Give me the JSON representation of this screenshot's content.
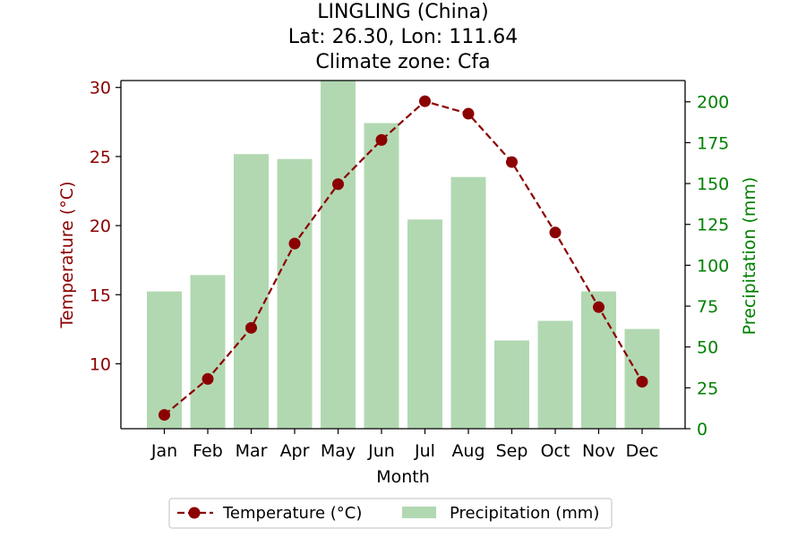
{
  "chart_data": {
    "type": "bar+line",
    "title_lines": [
      "LINGLING (China)",
      "Lat: 26.30, Lon: 111.64",
      "Climate zone: Cfa"
    ],
    "xlabel": "Month",
    "y_left_label": "Temperature (°C)",
    "y_right_label": "Precipitation (mm)",
    "categories": [
      "Jan",
      "Feb",
      "Mar",
      "Apr",
      "May",
      "Jun",
      "Jul",
      "Aug",
      "Sep",
      "Oct",
      "Nov",
      "Dec"
    ],
    "temperature": {
      "name": "Temperature (°C)",
      "values": [
        6.3,
        8.9,
        12.6,
        18.7,
        23.0,
        26.2,
        29.0,
        28.1,
        24.6,
        19.5,
        14.1,
        8.7
      ],
      "color": "#8b0000"
    },
    "precipitation": {
      "name": "Precipitation (mm)",
      "values": [
        84,
        94,
        168,
        165,
        213,
        187,
        128,
        154,
        54,
        66,
        84,
        61
      ],
      "color": "#b2d8b2"
    },
    "y_left_range": [
      5.3,
      30.5
    ],
    "y_left_ticks": [
      10,
      15,
      20,
      25,
      30
    ],
    "y_right_range": [
      0,
      213
    ],
    "y_right_ticks": [
      0,
      25,
      50,
      75,
      100,
      125,
      150,
      175,
      200
    ],
    "left_axis_color": "#8b0000",
    "right_axis_color": "#008000",
    "legend_placement": "bottom-center",
    "grid": false
  }
}
